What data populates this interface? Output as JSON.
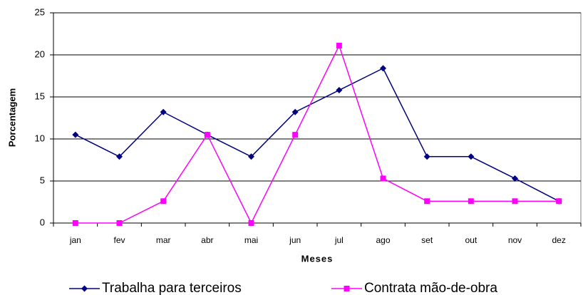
{
  "chart_data": {
    "type": "line",
    "xlabel": "Meses",
    "ylabel": "Porcentagem",
    "categories": [
      "jan",
      "fev",
      "mar",
      "abr",
      "mai",
      "jun",
      "jul",
      "ago",
      "set",
      "out",
      "nov",
      "dez"
    ],
    "series": [
      {
        "name": "Trabalha para terceiros",
        "color": "#000080",
        "marker": "diamond",
        "values": [
          10.5,
          7.9,
          13.2,
          10.5,
          7.9,
          13.2,
          15.8,
          18.4,
          7.9,
          7.9,
          5.3,
          2.6
        ]
      },
      {
        "name": "Contrata mão-de-obra",
        "color": "#ff00ff",
        "marker": "square",
        "values": [
          0,
          0,
          2.6,
          10.5,
          0,
          10.5,
          21.1,
          5.3,
          2.6,
          2.6,
          2.6,
          2.6
        ]
      }
    ],
    "ylim": [
      0,
      25
    ],
    "yticks": [
      0,
      5,
      10,
      15,
      20,
      25
    ],
    "grid": true,
    "legend": "bottom"
  }
}
